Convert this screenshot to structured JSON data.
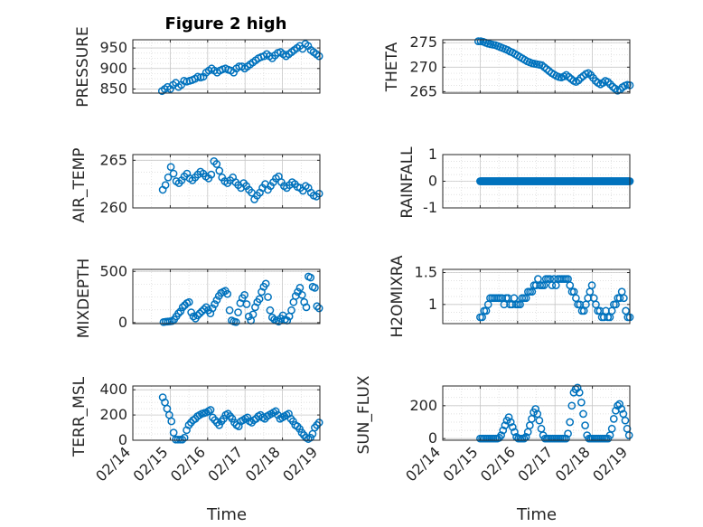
{
  "figure_title": "Figure 2 high",
  "chart_data": [
    {
      "type": "scatter",
      "name": "pressure",
      "title": "Figure 2 high",
      "ylabel": "PRESSURE",
      "ylim": [
        840,
        970
      ],
      "yticks": [
        "850",
        "900",
        "950"
      ],
      "ytick_values": [
        850,
        900,
        950
      ],
      "xlim": [
        0,
        5
      ],
      "x_start": 0.78,
      "x_end": 4.98,
      "y": [
        845,
        850,
        855,
        850,
        860,
        865,
        855,
        860,
        870,
        868,
        870,
        872,
        875,
        880,
        878,
        880,
        890,
        895,
        900,
        895,
        890,
        895,
        898,
        900,
        897,
        895,
        890,
        900,
        905,
        905,
        900,
        905,
        910,
        915,
        920,
        925,
        928,
        930,
        935,
        930,
        925,
        932,
        938,
        940,
        935,
        930,
        935,
        940,
        945,
        950,
        955,
        948,
        960,
        955,
        945,
        940,
        935,
        930
      ]
    },
    {
      "type": "scatter",
      "name": "theta",
      "ylabel": "THETA",
      "ylim": [
        264.7,
        275.6
      ],
      "yticks": [
        "265",
        "270",
        "275"
      ],
      "ytick_values": [
        265,
        270,
        275
      ],
      "xlim": [
        0,
        5
      ],
      "x_start": 0.95,
      "x_end": 5.0,
      "y": [
        275.3,
        275.3,
        275.2,
        275.0,
        274.8,
        274.7,
        274.6,
        274.5,
        274.3,
        274.1,
        273.9,
        273.7,
        273.5,
        273.2,
        273.0,
        272.7,
        272.4,
        272.1,
        271.8,
        271.5,
        271.2,
        271.0,
        270.8,
        270.7,
        270.6,
        270.5,
        270.4,
        270.0,
        269.6,
        269.2,
        268.8,
        268.5,
        268.2,
        268.0,
        267.9,
        268.1,
        268.4,
        268.0,
        267.6,
        267.2,
        267.0,
        267.3,
        267.8,
        268.2,
        268.6,
        268.8,
        268.4,
        267.8,
        267.2,
        266.8,
        266.5,
        266.8,
        267.2,
        267.0,
        266.5,
        266.0,
        265.6,
        265.2,
        265.4,
        265.9,
        266.2,
        266.4,
        266.3
      ]
    },
    {
      "type": "scatter",
      "name": "air-temp",
      "ylabel": "AIR_TEMP",
      "ylim": [
        260,
        265.6
      ],
      "yticks": [
        "260",
        "265"
      ],
      "ytick_values": [
        260,
        265
      ],
      "xlim": [
        0,
        5
      ],
      "x_start": 0.8,
      "x_end": 4.98,
      "y": [
        261.9,
        262.4,
        263.2,
        264.3,
        263.6,
        262.8,
        262.6,
        262.9,
        263.3,
        263.6,
        263.1,
        262.9,
        263.2,
        263.5,
        263.8,
        263.6,
        263.3,
        263.1,
        263.5,
        264.9,
        264.6,
        263.9,
        263.2,
        262.8,
        262.6,
        262.9,
        263.2,
        262.7,
        262.4,
        262.1,
        262.6,
        262.3,
        261.9,
        261.6,
        260.9,
        261.3,
        261.6,
        262.1,
        262.5,
        261.9,
        262.3,
        262.7,
        263.1,
        263.3,
        262.7,
        262.3,
        262.1,
        262.4,
        262.7,
        262.5,
        262.2,
        262.1,
        261.8,
        262.3,
        262.1,
        261.6,
        261.3,
        261.2,
        261.5
      ]
    },
    {
      "type": "scatter",
      "name": "rainfall",
      "ylabel": "RAINFALL",
      "ylim": [
        -1,
        1
      ],
      "yticks": [
        "-1",
        "0",
        "1"
      ],
      "ytick_values": [
        -1,
        0,
        1
      ],
      "xlim": [
        0,
        5
      ],
      "x_start": 1.0,
      "x_end": 5.0,
      "y": [
        0,
        0,
        0,
        0,
        0,
        0,
        0,
        0,
        0,
        0,
        0,
        0,
        0,
        0,
        0,
        0,
        0,
        0,
        0,
        0,
        0,
        0,
        0,
        0,
        0,
        0,
        0,
        0,
        0,
        0,
        0,
        0,
        0,
        0,
        0,
        0,
        0,
        0,
        0,
        0,
        0,
        0,
        0,
        0,
        0,
        0,
        0,
        0,
        0,
        0,
        0,
        0,
        0,
        0,
        0,
        0,
        0,
        0,
        0,
        0,
        0,
        0,
        0,
        0,
        0,
        0,
        0,
        0,
        0,
        0,
        0,
        0,
        0,
        0,
        0,
        0,
        0,
        0,
        0,
        0,
        0,
        0,
        0,
        0,
        0,
        0,
        0,
        0,
        0,
        0,
        0,
        0,
        0,
        0,
        0,
        0,
        0,
        0,
        0,
        0,
        0,
        0,
        0,
        0,
        0,
        0,
        0,
        0,
        0,
        0,
        0,
        0,
        0,
        0,
        0,
        0,
        0,
        0,
        0,
        0,
        0,
        0,
        0,
        0,
        0,
        0,
        0,
        0,
        0,
        0,
        0,
        0,
        0,
        0,
        0,
        0,
        0,
        0,
        0,
        0,
        0,
        0,
        0,
        0,
        0,
        0,
        0,
        0,
        0,
        0,
        0,
        0,
        0,
        0,
        0,
        0,
        0,
        0,
        0,
        0,
        0,
        0,
        0,
        0,
        0,
        0,
        0,
        0,
        0,
        0,
        0,
        0,
        0,
        0,
        0,
        0,
        0,
        0,
        0,
        0
      ]
    },
    {
      "type": "scatter",
      "name": "mixdepth",
      "ylabel": "MIXDEPTH",
      "ylim": [
        -10,
        520
      ],
      "yticks": [
        "0",
        "500"
      ],
      "ytick_values": [
        0,
        500
      ],
      "xlim": [
        0,
        5
      ],
      "x_start": 0.82,
      "x_end": 4.98,
      "y": [
        5,
        8,
        10,
        12,
        15,
        30,
        60,
        90,
        110,
        150,
        170,
        190,
        200,
        100,
        60,
        40,
        70,
        90,
        110,
        130,
        150,
        120,
        90,
        140,
        180,
        220,
        260,
        290,
        300,
        310,
        280,
        120,
        20,
        10,
        5,
        100,
        190,
        240,
        270,
        180,
        60,
        20,
        80,
        150,
        200,
        230,
        300,
        350,
        380,
        250,
        120,
        50,
        30,
        20,
        10,
        40,
        70,
        30,
        20,
        60,
        120,
        200,
        260,
        300,
        340,
        270,
        200,
        150,
        450,
        440,
        350,
        340,
        160,
        140
      ]
    },
    {
      "type": "scatter",
      "name": "h2omixra",
      "ylabel": "H2OMIXRA",
      "ylim": [
        0.7,
        1.55
      ],
      "yticks": [
        "1",
        "1.5"
      ],
      "ytick_values": [
        1,
        1.5
      ],
      "xlim": [
        0,
        5
      ],
      "x_start": 1.0,
      "x_end": 5.0,
      "y": [
        0.8,
        0.8,
        0.9,
        0.9,
        1.0,
        1.1,
        1.1,
        1.1,
        1.1,
        1.1,
        1.1,
        1.1,
        1.0,
        1.1,
        1.1,
        1.0,
        1.0,
        1.1,
        1.0,
        1.0,
        1.0,
        1.1,
        1.1,
        1.1,
        1.2,
        1.2,
        1.2,
        1.3,
        1.3,
        1.4,
        1.3,
        1.3,
        1.3,
        1.4,
        1.4,
        1.4,
        1.3,
        1.4,
        1.3,
        1.4,
        1.4,
        1.4,
        1.4,
        1.4,
        1.4,
        1.3,
        1.2,
        1.2,
        1.1,
        1.0,
        1.0,
        0.9,
        0.9,
        1.0,
        1.1,
        1.2,
        1.3,
        1.1,
        1.0,
        0.9,
        0.9,
        0.8,
        0.8,
        0.9,
        0.8,
        0.8,
        0.9,
        1.0,
        1.0,
        1.1,
        1.1,
        1.2,
        1.1,
        0.9,
        0.8,
        0.8
      ]
    },
    {
      "type": "scatter",
      "name": "terr-msl",
      "ylabel": "TERR_MSL",
      "ylim": [
        0,
        430
      ],
      "yticks": [
        "0",
        "200",
        "400"
      ],
      "ytick_values": [
        0,
        200,
        400
      ],
      "xlim": [
        0,
        5
      ],
      "x_start": 0.8,
      "x_end": 4.98,
      "y": [
        340,
        300,
        250,
        200,
        150,
        60,
        5,
        5,
        5,
        5,
        20,
        80,
        120,
        140,
        160,
        170,
        190,
        200,
        210,
        215,
        220,
        230,
        240,
        180,
        160,
        140,
        120,
        150,
        170,
        200,
        210,
        190,
        170,
        140,
        120,
        110,
        150,
        160,
        170,
        180,
        150,
        140,
        160,
        170,
        190,
        200,
        180,
        170,
        190,
        200,
        210,
        220,
        230,
        200,
        170,
        180,
        190,
        200,
        210,
        170,
        150,
        120,
        110,
        90,
        60,
        40,
        20,
        10,
        20,
        50,
        100,
        120,
        140
      ]
    },
    {
      "type": "scatter",
      "name": "sun-flux",
      "ylabel": "SUN_FLUX",
      "ylim": [
        -10,
        320
      ],
      "yticks": [
        "0",
        "200"
      ],
      "ytick_values": [
        0,
        200
      ],
      "xlim": [
        0,
        5
      ],
      "x_start": 1.0,
      "x_end": 4.98,
      "y": [
        0,
        0,
        0,
        0,
        0,
        0,
        0,
        0,
        0,
        0,
        5,
        20,
        50,
        80,
        110,
        130,
        100,
        70,
        40,
        10,
        0,
        0,
        0,
        0,
        10,
        40,
        80,
        120,
        160,
        180,
        150,
        110,
        60,
        20,
        0,
        0,
        0,
        0,
        0,
        0,
        0,
        0,
        0,
        0,
        0,
        0,
        30,
        100,
        200,
        280,
        300,
        310,
        280,
        220,
        150,
        80,
        20,
        0,
        0,
        0,
        0,
        0,
        0,
        0,
        0,
        0,
        0,
        0,
        20,
        60,
        120,
        170,
        200,
        210,
        180,
        150,
        110,
        60,
        20
      ]
    }
  ],
  "x_ticks": [
    "02/14",
    "02/15",
    "02/16",
    "02/17",
    "02/18",
    "02/19"
  ],
  "x_labels": [
    "Time",
    "Time"
  ]
}
